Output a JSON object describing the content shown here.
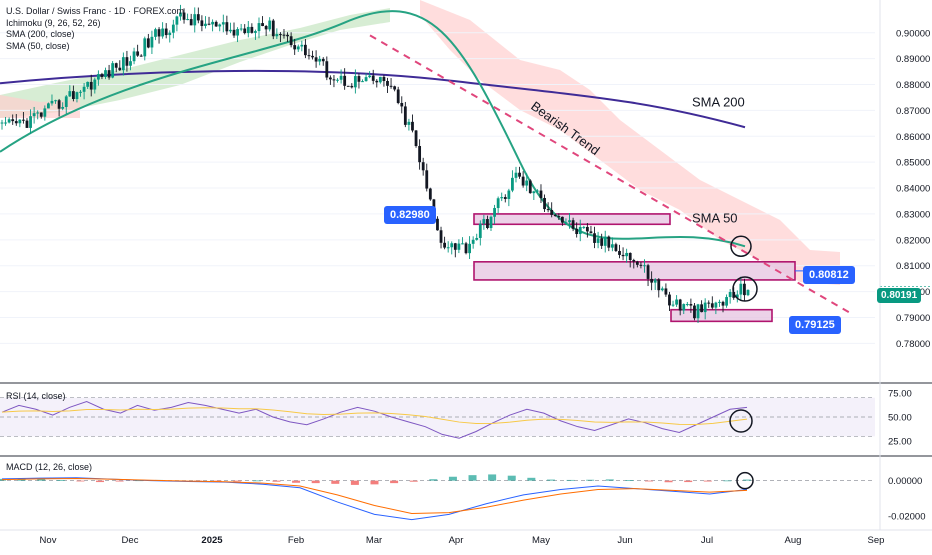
{
  "legend": {
    "symbol": "U.S. Dollar / Swiss Franc · 1D · FOREX.com",
    "ind1": "Ichimoku (9, 26, 52, 26)",
    "ind2": "SMA (200, close)",
    "ind3": "SMA (50, close)"
  },
  "rsi_legend": "RSI (14, close)",
  "macd_legend": "MACD (12, 26, close)",
  "annotations": {
    "sma200": "SMA 200",
    "sma50": "SMA 50",
    "trend": "Bearish Trend",
    "tag_resistance": "0.82980",
    "tag_mid": "0.80812",
    "tag_support": "0.79125",
    "tag_last": "0.80191"
  },
  "colors": {
    "up": "#089981",
    "down": "#131722",
    "sma200": "#3f2b96",
    "sma50": "#26a383",
    "zone_fill": "#e6c3e0",
    "zone_border": "#b0146e",
    "tag_blue": "#2962ff",
    "tag_green": "#089981",
    "trend_line": "#e0467c",
    "cloud": "#ffcfcf",
    "cloud_green": "#b6dfb1"
  },
  "chart_data": [
    {
      "type": "candlestick",
      "title": "U.S. Dollar / Swiss Franc · 1D · FOREX.com",
      "x_ticks": [
        "Nov",
        "Dec",
        "2025",
        "Feb",
        "Mar",
        "Apr",
        "May",
        "Jun",
        "Jul",
        "Aug",
        "Sep"
      ],
      "y_ticks": [
        "0.90000",
        "0.89000",
        "0.88000",
        "0.87000",
        "0.86000",
        "0.85000",
        "0.84000",
        "0.83000",
        "0.82000",
        "0.81000",
        "0.80000",
        "0.79000",
        "0.78000"
      ],
      "ylim": [
        0.7755,
        0.9057
      ],
      "close_path": [
        [
          "Nov",
          0.863
        ],
        [
          "Nov",
          0.866
        ],
        [
          "Nov",
          0.871
        ],
        [
          "Dec",
          0.878
        ],
        [
          "Dec",
          0.884
        ],
        [
          "Dec",
          0.89
        ],
        [
          "2025",
          0.899
        ],
        [
          "2025",
          0.906
        ],
        [
          "Feb",
          0.903
        ],
        [
          "Feb",
          0.9
        ],
        [
          "Feb",
          0.904
        ],
        [
          "Mar",
          0.899
        ],
        [
          "Mar",
          0.891
        ],
        [
          "Mar",
          0.882
        ],
        [
          "Mar",
          0.881
        ],
        [
          "Apr",
          0.881
        ],
        [
          "Apr",
          0.86
        ],
        [
          "Apr",
          0.82
        ],
        [
          "Apr",
          0.817
        ],
        [
          "May",
          0.829
        ],
        [
          "May",
          0.845
        ],
        [
          "May",
          0.835
        ],
        [
          "Jun",
          0.826
        ],
        [
          "Jun",
          0.82
        ],
        [
          "Jun",
          0.817
        ],
        [
          "Jun",
          0.808
        ],
        [
          "Jul",
          0.796
        ],
        [
          "Jul",
          0.792
        ],
        [
          "Jul",
          0.796
        ],
        [
          "Jul",
          0.802
        ]
      ],
      "series": [
        {
          "name": "SMA (200, close)",
          "values": [
            [
              0.8805,
              0.885
            ],
            [
              0.888,
              0.8735
            ],
            [
              0.87,
              0.8635
            ]
          ]
        },
        {
          "name": "SMA (50, close)",
          "values": [
            [
              0.854,
              0.885
            ],
            [
              0.904,
              0.875
            ],
            [
              0.83,
              0.8175
            ]
          ]
        }
      ],
      "zones": [
        [
          0.83,
          0.826
        ],
        [
          0.8115,
          0.8045
        ],
        [
          0.793,
          0.7885
        ]
      ],
      "last_price": 0.80191
    },
    {
      "type": "line",
      "title": "RSI (14, close)",
      "y_ticks": [
        "75.00",
        "50.00",
        "25.00"
      ],
      "ylim": [
        20,
        80
      ],
      "band": [
        30,
        70
      ],
      "midline": 50,
      "values": [
        55,
        62,
        58,
        52,
        60,
        66,
        58,
        54,
        62,
        57,
        60,
        65,
        62,
        58,
        54,
        58,
        50,
        45,
        42,
        48,
        55,
        60,
        56,
        50,
        45,
        40,
        32,
        28,
        35,
        44,
        52,
        58,
        54,
        46,
        40,
        36,
        42,
        48,
        44,
        38,
        34,
        42,
        50,
        58,
        60
      ]
    },
    {
      "type": "bar",
      "title": "MACD (12, 26, close)",
      "y_ticks": [
        "0.00000",
        "-0.02000"
      ],
      "ylim": [
        -0.025,
        0.006
      ],
      "histogram": [
        0.001,
        0.0013,
        0.001,
        0.0003,
        -0.0004,
        -0.0008,
        -0.0005,
        0.0002,
        0.0004,
        0.0001,
        -0.0003,
        -0.0006,
        -0.0004,
        0.0001,
        -0.0006,
        -0.0012,
        -0.0014,
        -0.0018,
        -0.0024,
        -0.0021,
        -0.0014,
        -0.0006,
        0.0008,
        0.0022,
        0.0031,
        0.0035,
        0.0028,
        0.0016,
        0.0006,
        0.0004,
        0.0005,
        0.0007,
        0.0003,
        -0.0004,
        -0.0009,
        -0.0008,
        -0.0005,
        0.0001,
        0.0006
      ],
      "series": [
        {
          "name": "MACD",
          "values": [
            0.001,
            0.0014,
            0.0016,
            0.0008,
            0.0,
            -0.0005,
            -0.0008,
            -0.002,
            -0.004,
            -0.012,
            -0.019,
            -0.022,
            -0.019,
            -0.013,
            -0.008,
            -0.005,
            -0.003,
            -0.0045,
            -0.006,
            -0.0075,
            -0.005
          ]
        },
        {
          "name": "Signal",
          "values": [
            0.0006,
            0.001,
            0.0012,
            0.0008,
            0.0002,
            -0.0003,
            -0.0006,
            -0.0014,
            -0.003,
            -0.008,
            -0.014,
            -0.0185,
            -0.018,
            -0.015,
            -0.011,
            -0.0075,
            -0.005,
            -0.0045,
            -0.0055,
            -0.0065,
            -0.0055
          ]
        }
      ]
    }
  ]
}
